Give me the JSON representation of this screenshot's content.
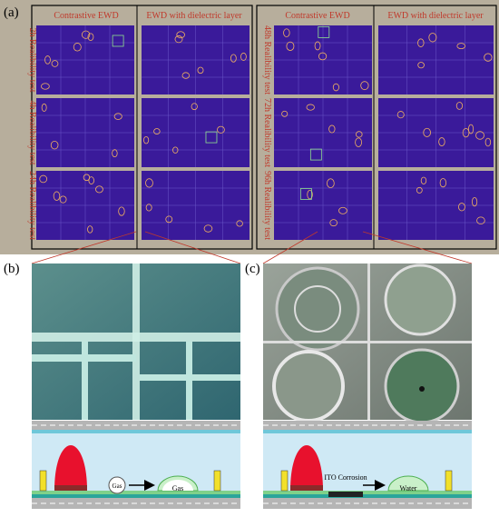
{
  "figure": {
    "panel_a": {
      "label": "(a)",
      "column_headers": [
        "Contrastive EWD",
        "EWD with dielectric layer"
      ],
      "left_rows": [
        "2h Realibility test",
        "4h Realibility test",
        "24h Realibility test"
      ],
      "right_rows": [
        "48h Realibility test",
        "72h Realibility test",
        "96h Realibility test"
      ]
    },
    "panel_b": {
      "label": "(b)",
      "labels": [
        "Gas",
        "Gas"
      ]
    },
    "panel_c": {
      "label": "(c)",
      "labels": [
        "ITO Corrosion",
        "Water"
      ]
    }
  }
}
